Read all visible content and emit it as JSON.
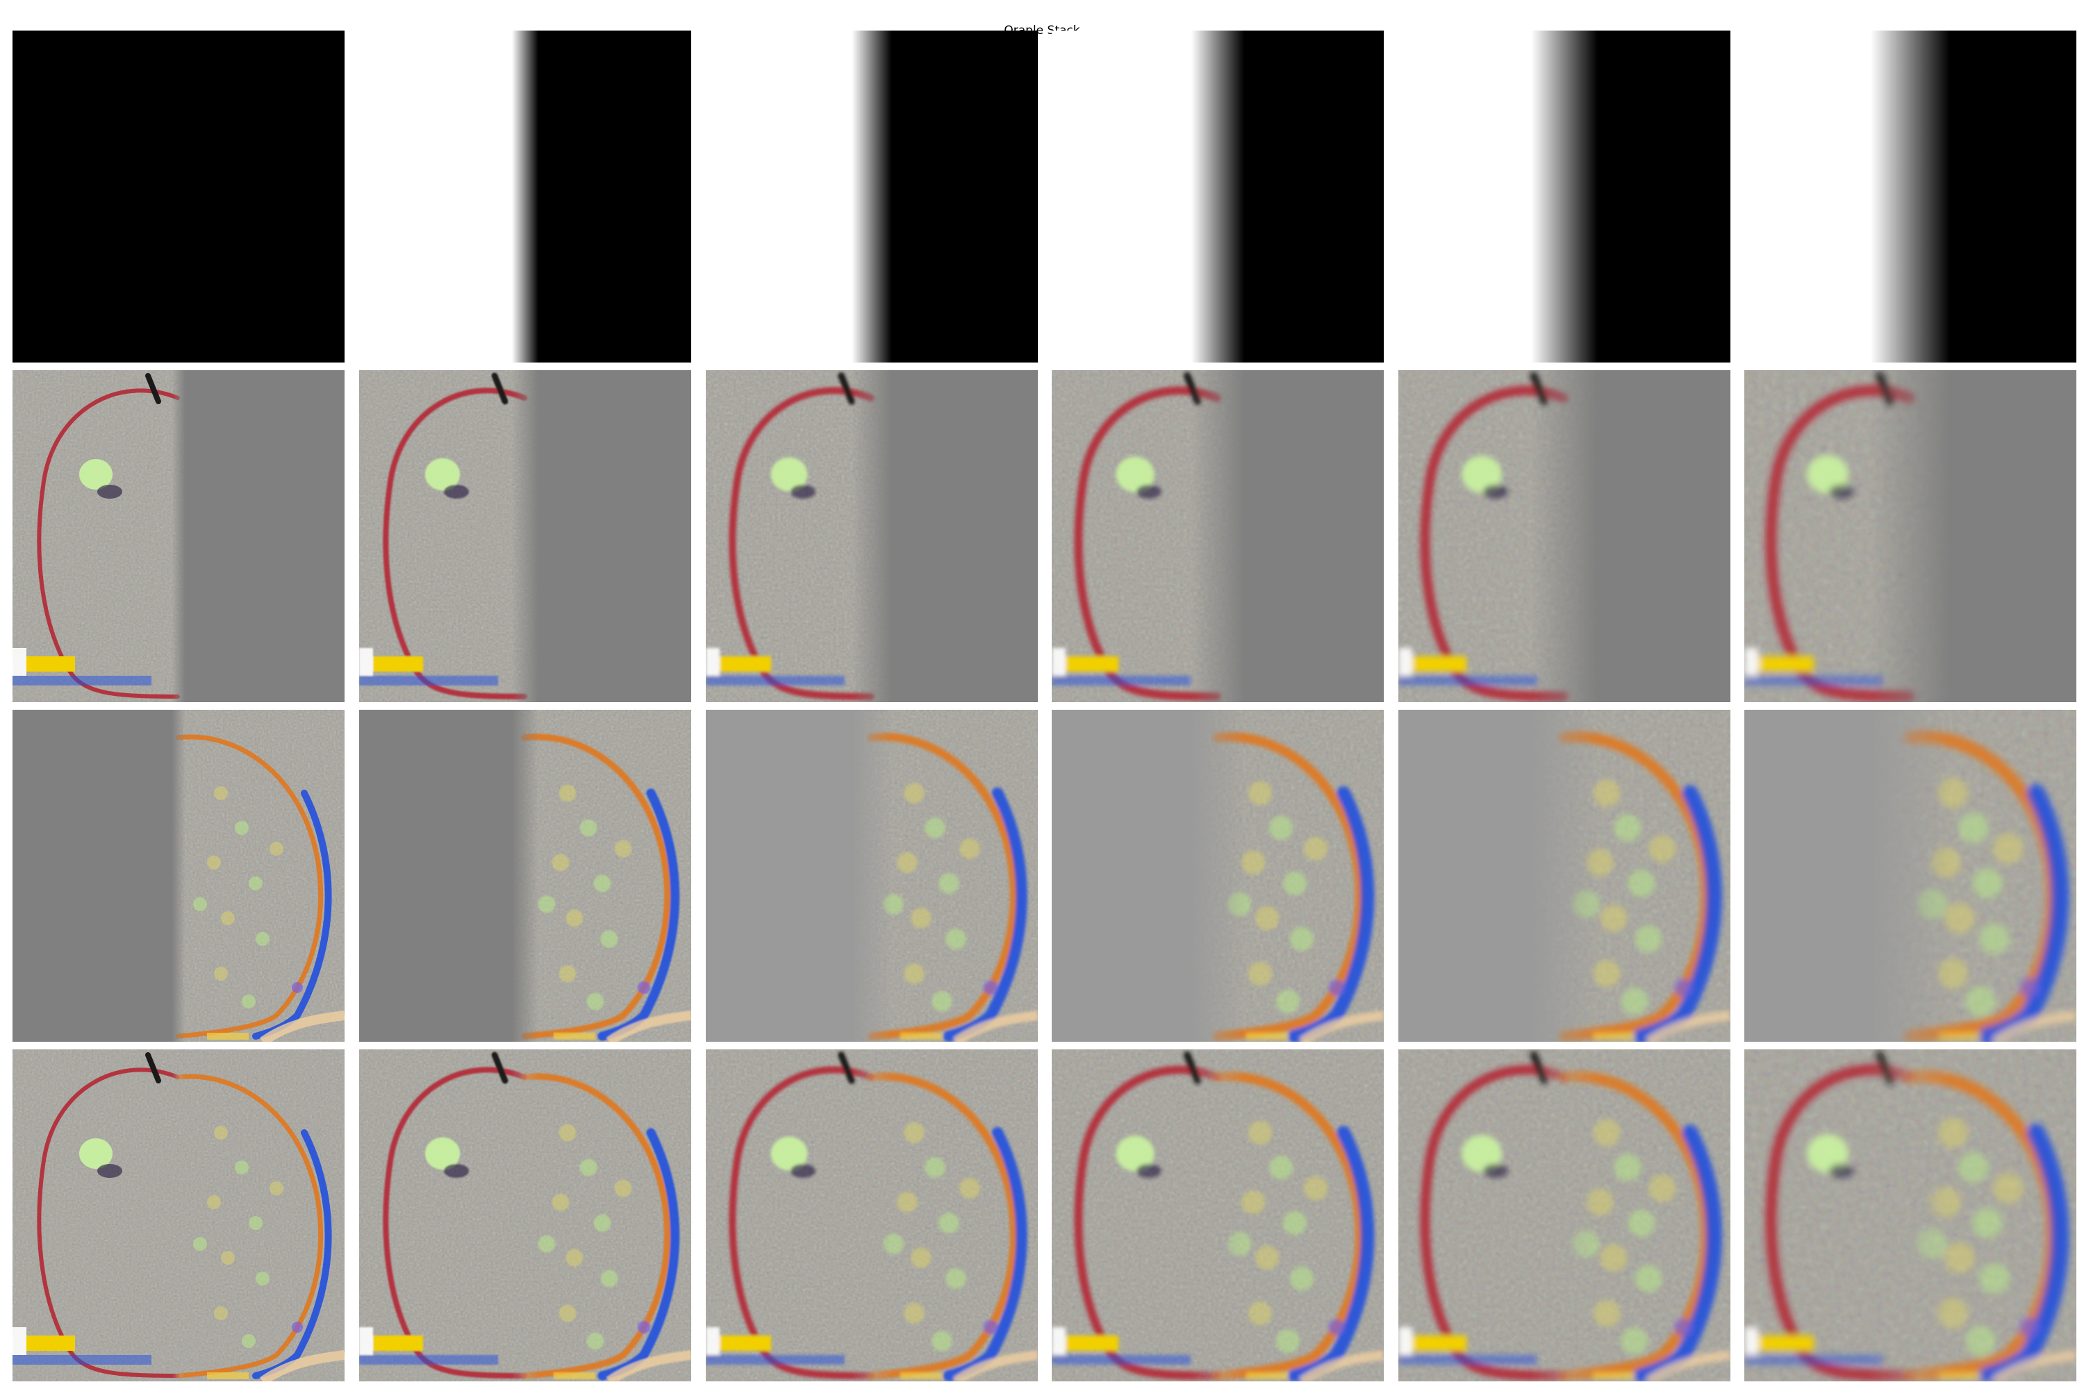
{
  "figure": {
    "title": "Oraple Stack"
  },
  "grid": {
    "rows": [
      {
        "row_name": "mask-row",
        "content": "mask"
      },
      {
        "row_name": "apple-masked-row",
        "content": "apple-left-half"
      },
      {
        "row_name": "orange-masked-row",
        "content": "orange-right-half"
      },
      {
        "row_name": "blended-row",
        "content": "blended-oraple"
      }
    ],
    "levels": [
      {
        "level": 0,
        "transition_softness": 0.0
      },
      {
        "level": 1,
        "transition_softness": 0.2
      },
      {
        "level": 2,
        "transition_softness": 0.4
      },
      {
        "level": 3,
        "transition_softness": 0.6
      },
      {
        "level": 4,
        "transition_softness": 0.8
      },
      {
        "level": 5,
        "transition_softness": 1.0
      }
    ]
  },
  "colors": {
    "background": "#ffffff",
    "mask_dark": "#000000",
    "mask_light": "#ffffff",
    "neutral_gray": "#808080",
    "apple_red": "#b4202e",
    "orange_edge": "#e0781e",
    "highlight_green": "#c8f0a0",
    "shadow_blue": "#1a4ae0",
    "label_yellow": "#f2d000"
  }
}
